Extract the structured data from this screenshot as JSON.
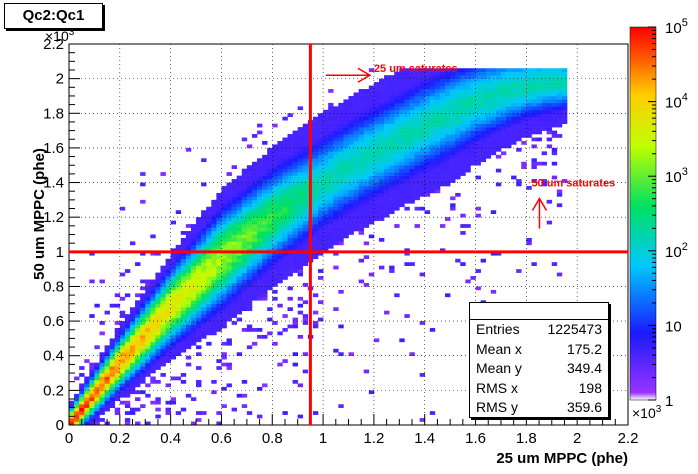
{
  "title": "Qc2:Qc1",
  "stats": {
    "rows": [
      {
        "label": "Entries",
        "value": "1225473"
      },
      {
        "label": "Mean x",
        "value": "175.2"
      },
      {
        "label": "Mean y",
        "value": "349.4"
      },
      {
        "label": "RMS x",
        "value": "198"
      },
      {
        "label": "RMS y",
        "value": "359.6"
      }
    ]
  },
  "chart_data": {
    "type": "heatmap",
    "xlabel": "25 um MPPC (phe)",
    "ylabel": "50 um MPPC (phe)",
    "x_multiplier": "×10",
    "x_multiplier_exp": "3",
    "y_multiplier": "×10",
    "y_multiplier_exp": "3",
    "xlim": [
      0,
      2.2
    ],
    "ylim": [
      0,
      2.2
    ],
    "x_ticks": [
      "0",
      "0.2",
      "0.4",
      "0.6",
      "0.8",
      "1",
      "1.2",
      "1.4",
      "1.6",
      "1.8",
      "2",
      "2.2"
    ],
    "y_ticks": [
      "0",
      "0.2",
      "0.4",
      "0.6",
      "0.8",
      "1",
      "1.2",
      "1.4",
      "1.6",
      "1.8",
      "2",
      "2.2"
    ],
    "grid": true,
    "z_scale": "log",
    "z_range": [
      1,
      100000
    ],
    "colorbar_ticks": [
      {
        "base": "1",
        "exp": "",
        "value": 1
      },
      {
        "base": "10",
        "exp": "",
        "value": 10
      },
      {
        "base": "10",
        "exp": "2",
        "value": 100
      },
      {
        "base": "10",
        "exp": "3",
        "value": 1000
      },
      {
        "base": "10",
        "exp": "4",
        "value": 10000
      },
      {
        "base": "10",
        "exp": "5",
        "value": 100000
      }
    ],
    "ridge": {
      "description_points": [
        [
          0.0,
          0.0
        ],
        [
          0.1,
          0.18
        ],
        [
          0.2,
          0.36
        ],
        [
          0.3,
          0.52
        ],
        [
          0.4,
          0.68
        ],
        [
          0.5,
          0.82
        ],
        [
          0.6,
          0.96
        ],
        [
          0.7,
          1.08
        ],
        [
          0.8,
          1.2
        ],
        [
          0.9,
          1.3
        ],
        [
          1.0,
          1.4
        ],
        [
          1.1,
          1.49
        ],
        [
          1.2,
          1.57
        ],
        [
          1.3,
          1.65
        ],
        [
          1.4,
          1.73
        ],
        [
          1.5,
          1.8
        ],
        [
          1.6,
          1.87
        ],
        [
          1.7,
          1.92
        ],
        [
          1.8,
          1.96
        ],
        [
          1.9,
          1.98
        ]
      ]
    },
    "cut_lines": [
      {
        "orientation": "vertical",
        "x": 0.95,
        "color": "#ff0000"
      },
      {
        "orientation": "horizontal",
        "y": 1.0,
        "color": "#ff0000"
      }
    ],
    "annotations": [
      {
        "text": "25 um saturates",
        "x": 1.2,
        "y": 2.06,
        "color": "#ff0000"
      },
      {
        "text": "50 um saturates",
        "x": 1.82,
        "y": 1.4,
        "color": "#ff0000"
      }
    ]
  },
  "colors": {
    "line": "#ff0000",
    "frame": "#000000"
  }
}
